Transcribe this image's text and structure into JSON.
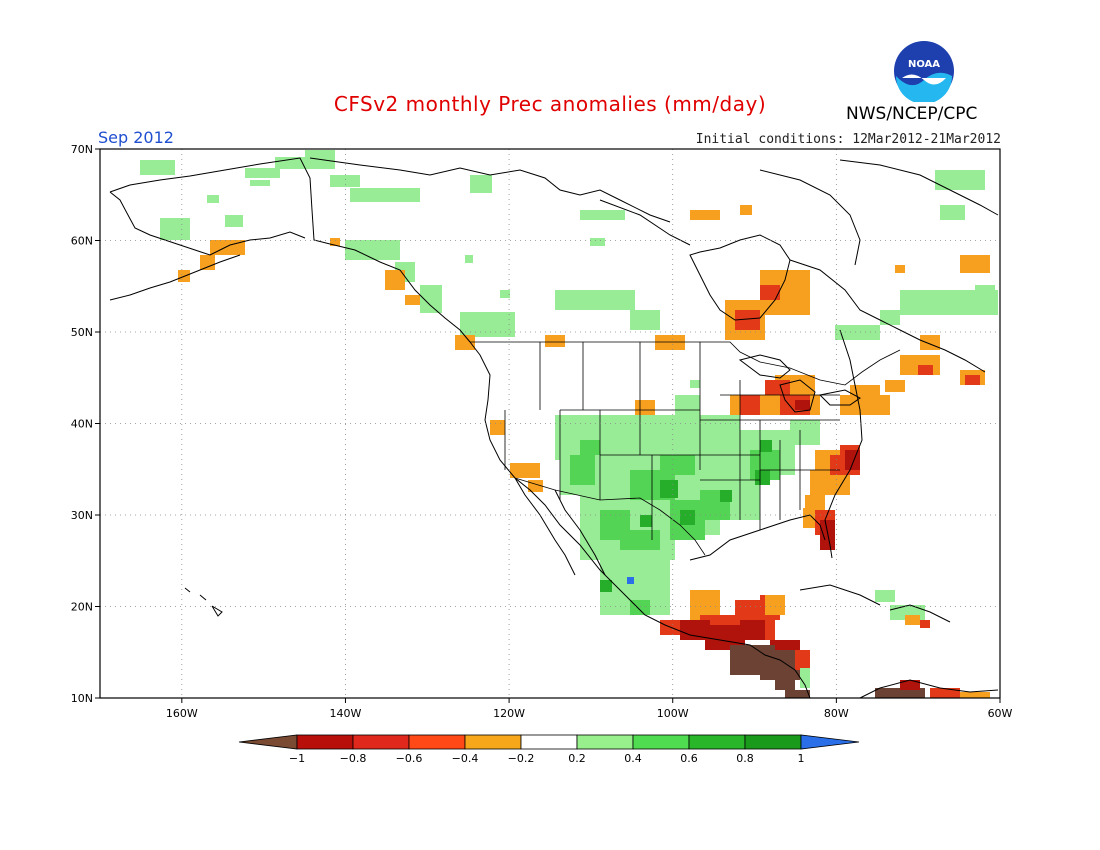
{
  "header": {
    "title": "CFSv2 monthly Prec anomalies (mm/day)",
    "period": "Sep 2012",
    "initial_conditions": "Initial conditions: 12Mar2012-21Mar2012",
    "agency": "NWS/NCEP/CPC",
    "logo_text": "NOAA"
  },
  "axes": {
    "lat_labels": [
      "70N",
      "60N",
      "50N",
      "40N",
      "30N",
      "20N",
      "10N"
    ],
    "lon_labels": [
      "160W",
      "140W",
      "120W",
      "100W",
      "80W",
      "60W"
    ],
    "lat_range": [
      10,
      70
    ],
    "lon_range": [
      -170,
      -60
    ]
  },
  "colorbar": {
    "labels": [
      "-1",
      "-0.8",
      "-0.6",
      "-0.4",
      "-0.2",
      "0.2",
      "0.4",
      "0.6",
      "0.8",
      "1"
    ],
    "colors": [
      "#7b4a32",
      "#b80f0a",
      "#e0281c",
      "#ff4a18",
      "#f7a81a",
      "#ffffff",
      "#98f08c",
      "#50dc50",
      "#29b629",
      "#1a9a1a",
      "#2a6fe8"
    ]
  },
  "colors": {
    "brown": "#6b4233",
    "dark_red": "#b0120c",
    "red": "#e23a18",
    "orange": "#f7a020",
    "light_green": "#98ec96",
    "green": "#54d454",
    "dark_green": "#26ae2a",
    "blue": "#2a6fe8"
  }
}
